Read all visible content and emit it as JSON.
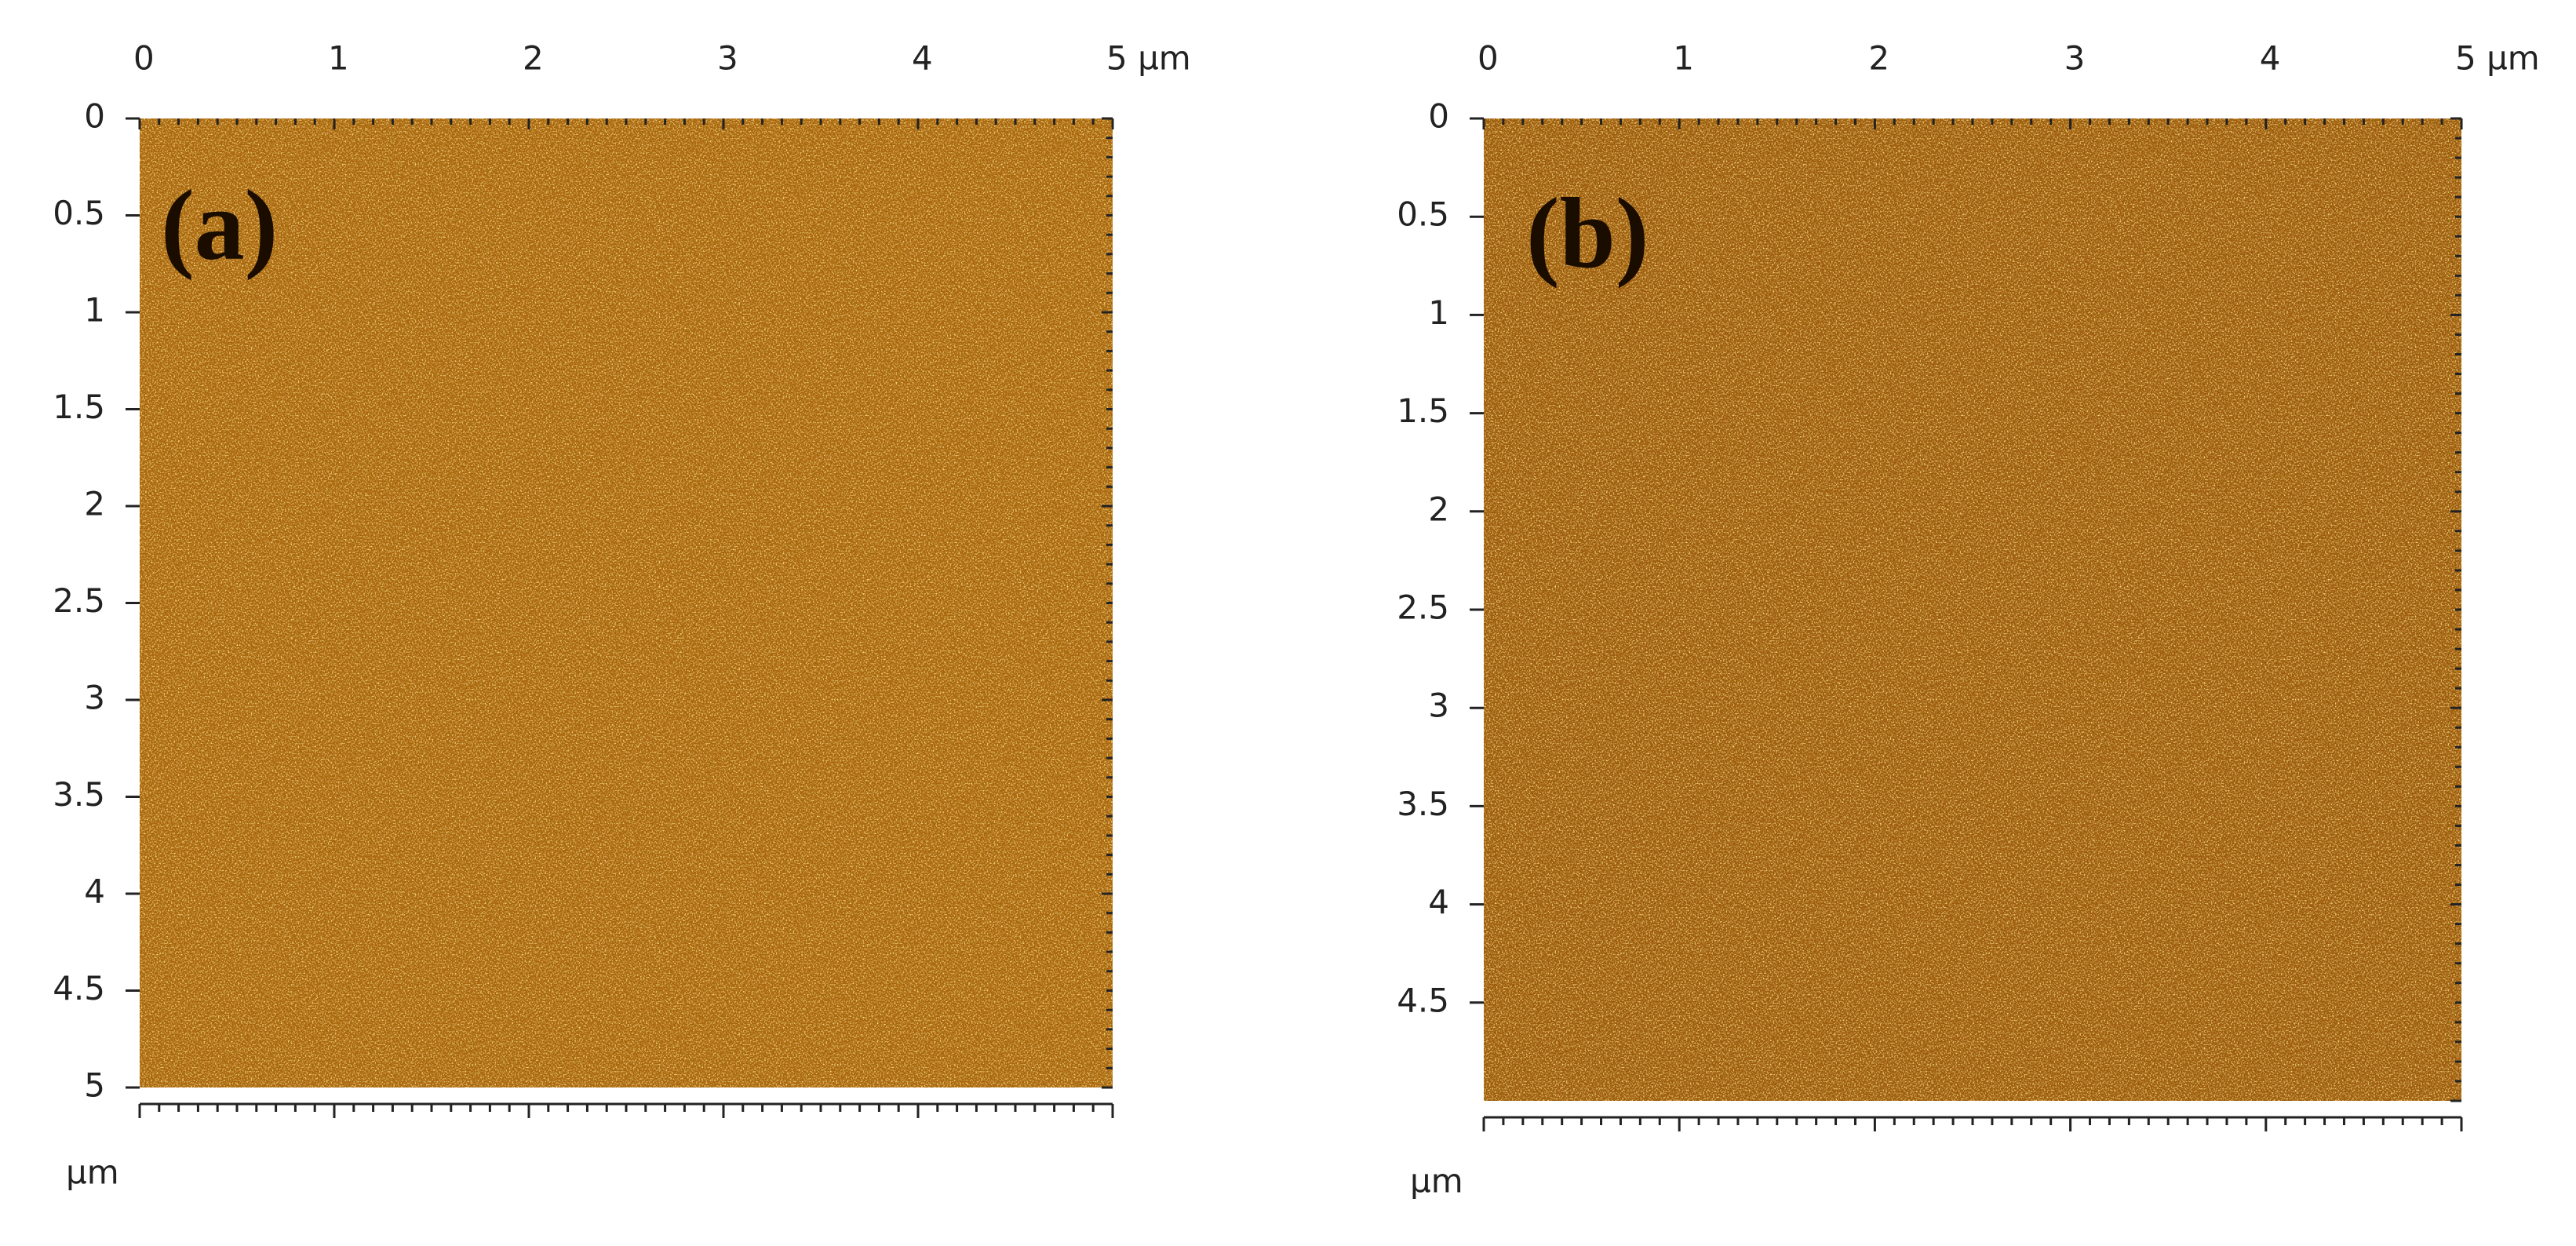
{
  "panels": [
    {
      "label": "(a)",
      "x_tick_labels": [
        "0",
        "1",
        "2",
        "3",
        "4",
        "5 µm"
      ],
      "y_tick_labels": [
        "0",
        "0.5",
        "1",
        "1.5",
        "2",
        "2.5",
        "3",
        "3.5",
        "4",
        "4.5",
        "5"
      ],
      "axis_unit": "µm"
    },
    {
      "label": "(b)",
      "x_tick_labels": [
        "0",
        "1",
        "2",
        "3",
        "4",
        "5 µm"
      ],
      "y_tick_labels": [
        "0",
        "0.5",
        "1",
        "1.5",
        "2",
        "2.5",
        "3",
        "3.5",
        "4",
        "4.5"
      ],
      "axis_unit": "µm"
    }
  ]
}
